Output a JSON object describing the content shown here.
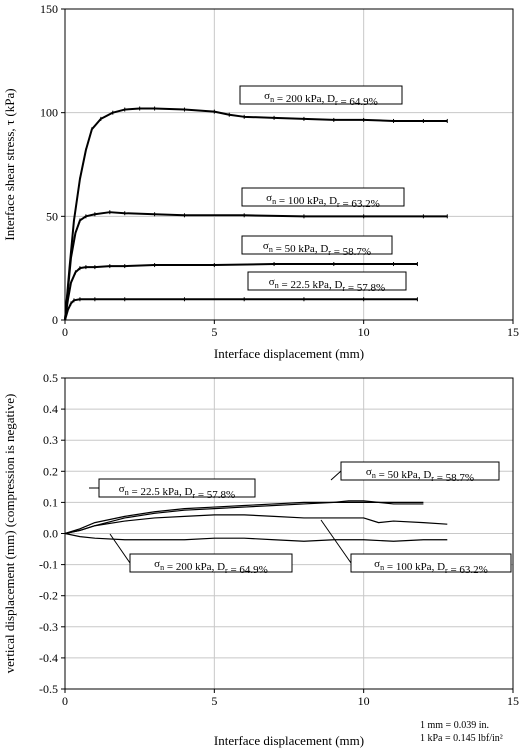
{
  "chart_data": [
    {
      "type": "line",
      "xlabel": "Interface displacement (mm)",
      "ylabel": "Interface shear stress, τ (kPa)",
      "xlim": [
        0,
        15
      ],
      "ylim": [
        0,
        150
      ],
      "xticks": [
        "0",
        "5",
        "10",
        "15"
      ],
      "yticks": [
        "0",
        "50",
        "100",
        "150"
      ],
      "grid": true,
      "series": [
        {
          "name": "σn = 200 kPa, Dr = 64.9%",
          "sigma": "200 kPa",
          "dr": "64.9%",
          "x": [
            0,
            0.15,
            0.3,
            0.5,
            0.7,
            0.9,
            1.2,
            1.6,
            2.0,
            2.5,
            3.0,
            4.0,
            5.0,
            5.5,
            6.0,
            7.0,
            8.0,
            9.0,
            10.0,
            11.0,
            12.0,
            12.8
          ],
          "y": [
            0,
            25,
            48,
            68,
            82,
            92,
            97,
            100,
            101.5,
            102,
            102,
            101.5,
            100.5,
            99,
            98,
            97.5,
            97,
            96.5,
            96.5,
            96,
            96,
            96
          ]
        },
        {
          "name": "σn = 100 kPa, Dr = 63.2%",
          "sigma": "100 kPa",
          "dr": "63.2%",
          "x": [
            0,
            0.1,
            0.2,
            0.35,
            0.5,
            0.7,
            1.0,
            1.5,
            2.0,
            3.0,
            4.0,
            6.0,
            8.0,
            10.0,
            12.0,
            12.8
          ],
          "y": [
            0,
            15,
            30,
            42,
            48,
            50,
            51,
            52,
            51.5,
            51,
            50.5,
            50.5,
            50,
            50,
            50,
            50
          ]
        },
        {
          "name": "σn = 50 kPa, Dr = 58.7%",
          "sigma": "50 kPa",
          "dr": "58.7%",
          "x": [
            0,
            0.1,
            0.2,
            0.35,
            0.5,
            0.7,
            1.0,
            1.5,
            2.0,
            3.0,
            5.0,
            7.0,
            9.0,
            11.0,
            11.8
          ],
          "y": [
            0,
            10,
            18,
            23,
            25,
            25.5,
            25.5,
            26,
            26,
            26.5,
            26.5,
            27,
            27,
            27,
            27
          ]
        },
        {
          "name": "σn = 22.5 kPa, Dr = 57.8%",
          "sigma": "22.5 kPa",
          "dr": "57.8%",
          "x": [
            0,
            0.1,
            0.2,
            0.3,
            0.5,
            1.0,
            2.0,
            4.0,
            6.0,
            8.0,
            10.0,
            11.8
          ],
          "y": [
            0,
            5,
            8,
            9.5,
            10,
            10,
            10,
            10,
            10,
            10,
            10,
            10
          ]
        }
      ]
    },
    {
      "type": "line",
      "xlabel": "Interface displacement (mm)",
      "ylabel": "vertical displacement (mm) (compression is negative)",
      "xlim": [
        0,
        15
      ],
      "ylim": [
        -0.5,
        0.5
      ],
      "xticks": [
        "0",
        "5",
        "10",
        "15"
      ],
      "yticks": [
        "0.5",
        "0.4",
        "0.3",
        "0.2",
        "0.1",
        "0.0",
        "-0.1",
        "-0.2",
        "-0.3",
        "-0.4",
        "-0.5"
      ],
      "grid": true,
      "series": [
        {
          "name": "σn = 50 kPa, Dr = 58.7%",
          "sigma": "50 kPa",
          "dr": "58.7%",
          "x": [
            0,
            0.5,
            1,
            2,
            3,
            4,
            5,
            6,
            7,
            8,
            9,
            10,
            11,
            12
          ],
          "y": [
            0,
            0.01,
            0.025,
            0.05,
            0.065,
            0.075,
            0.08,
            0.085,
            0.09,
            0.095,
            0.1,
            0.1,
            0.1,
            0.1
          ]
        },
        {
          "name": "σn = 22.5 kPa, Dr = 57.8%",
          "sigma": "22.5 kPa",
          "dr": "57.8%",
          "x": [
            0,
            0.5,
            1,
            2,
            3,
            4,
            5,
            6,
            7,
            8,
            9,
            9.5,
            10,
            10.5,
            11,
            12
          ],
          "y": [
            0,
            0.015,
            0.035,
            0.055,
            0.07,
            0.08,
            0.085,
            0.09,
            0.095,
            0.1,
            0.1,
            0.105,
            0.105,
            0.1,
            0.095,
            0.095
          ]
        },
        {
          "name": "σn = 100 kPa, Dr = 63.2%",
          "sigma": "100 kPa",
          "dr": "63.2%",
          "x": [
            0,
            0.5,
            1,
            2,
            3,
            4,
            5,
            6,
            7,
            8,
            9,
            10,
            10.5,
            11,
            12,
            12.8
          ],
          "y": [
            0,
            0.01,
            0.025,
            0.04,
            0.05,
            0.055,
            0.06,
            0.06,
            0.055,
            0.05,
            0.05,
            0.05,
            0.035,
            0.04,
            0.035,
            0.03
          ]
        },
        {
          "name": "σn = 200 kPa, Dr = 64.9%",
          "sigma": "200 kPa",
          "dr": "64.9%",
          "x": [
            0,
            0.5,
            1,
            2,
            3,
            4,
            5,
            6,
            7,
            8,
            9,
            10,
            11,
            12,
            12.8
          ],
          "y": [
            0,
            -0.01,
            -0.015,
            -0.02,
            -0.02,
            -0.02,
            -0.015,
            -0.015,
            -0.02,
            -0.025,
            -0.02,
            -0.02,
            -0.025,
            -0.02,
            -0.02
          ]
        }
      ]
    }
  ],
  "notes": {
    "conversion_line1": "1 mm = 0.039 in.",
    "conversion_line2": "1 kPa = 0.145 lbf/in²"
  }
}
